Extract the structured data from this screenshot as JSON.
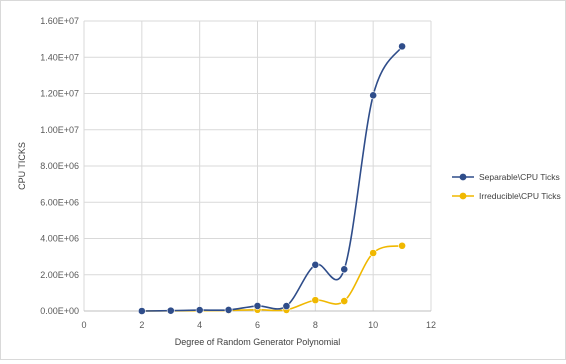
{
  "chart_data": {
    "type": "line",
    "xlabel": "Degree of Random Generator Polynomial",
    "ylabel": "CPU TICKS",
    "xlim": [
      0,
      12
    ],
    "ylim": [
      0,
      16000000
    ],
    "x_ticks": [
      0,
      2,
      4,
      6,
      8,
      10,
      12
    ],
    "x_tick_labels": [
      "0",
      "2",
      "4",
      "6",
      "8",
      "10",
      "12"
    ],
    "y_ticks": [
      0,
      2000000,
      4000000,
      6000000,
      8000000,
      10000000,
      12000000,
      14000000,
      16000000
    ],
    "y_tick_labels": [
      "0.00E+00",
      "2.00E+06",
      "4.00E+06",
      "6.00E+06",
      "8.00E+06",
      "1.00E+07",
      "1.20E+07",
      "1.40E+07",
      "1.60E+07"
    ],
    "grid": true,
    "legend_position": "right",
    "smooth": true,
    "series": [
      {
        "name": "Separable\\CPU Ticks",
        "color": "#2f4d8a",
        "x": [
          2,
          3,
          4,
          5,
          6,
          7,
          8,
          9,
          10,
          11
        ],
        "values": [
          0,
          20000,
          50000,
          60000,
          280000,
          270000,
          2550000,
          2300000,
          11900000,
          14600000
        ]
      },
      {
        "name": "Irreducible\\CPU Ticks",
        "color": "#f0b800",
        "x": [
          2,
          3,
          4,
          5,
          6,
          7,
          8,
          9,
          10,
          11
        ],
        "values": [
          0,
          10000,
          20000,
          30000,
          70000,
          60000,
          600000,
          550000,
          3200000,
          3600000
        ]
      }
    ]
  }
}
